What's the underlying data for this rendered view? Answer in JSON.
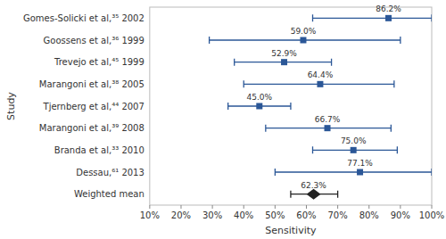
{
  "chart_data": {
    "type": "forest",
    "orientation": "horizontal",
    "xlabel": "Sensitivity",
    "ylabel": "Study",
    "categories": [
      "Gomes-Solicki et al,³⁵ 2002",
      "Goossens et al,³⁶ 1999",
      "Trevejo et al,⁴⁵ 1999",
      "Marangoni et al,³⁸ 2005",
      "Tjernberg et al,⁴⁴ 2007",
      "Marangoni et al,³⁹ 2008",
      "Branda et al,³³ 2010",
      "Dessau,⁶¹ 2013",
      "Weighted mean"
    ],
    "series": [
      {
        "marker": "square",
        "color": "#2b5797",
        "values": [
          86.2,
          59.0,
          52.9,
          64.4,
          45.0,
          66.7,
          75.0,
          77.1,
          null
        ],
        "ci_low": [
          62.0,
          29.0,
          37.0,
          40.0,
          35.0,
          47.0,
          62.0,
          50.0,
          null
        ],
        "ci_high": [
          100.0,
          90.0,
          68.0,
          88.0,
          55.0,
          87.0,
          89.0,
          100.0,
          null
        ],
        "value_labels": [
          "86.2%",
          "59.0%",
          "52.9%",
          "64.4%",
          "45.0%",
          "66.7%",
          "75.0%",
          "77.1%",
          null
        ]
      },
      {
        "marker": "diamond",
        "color": "#222222",
        "values": [
          null,
          null,
          null,
          null,
          null,
          null,
          null,
          null,
          62.3
        ],
        "ci_low": [
          null,
          null,
          null,
          null,
          null,
          null,
          null,
          null,
          55.0
        ],
        "ci_high": [
          null,
          null,
          null,
          null,
          null,
          null,
          null,
          null,
          70.0
        ],
        "value_labels": [
          null,
          null,
          null,
          null,
          null,
          null,
          null,
          null,
          "62.3%"
        ]
      }
    ],
    "data_labels": true,
    "grid": false,
    "xlim": [
      10,
      100
    ],
    "xticks": [
      {
        "value": 10,
        "label": "10%"
      },
      {
        "value": 20,
        "label": "20%"
      },
      {
        "value": 30,
        "label": "30%"
      },
      {
        "value": 40,
        "label": "40%"
      },
      {
        "value": 50,
        "label": "50%"
      },
      {
        "value": 60,
        "label": "60%"
      },
      {
        "value": 70,
        "label": "70%"
      },
      {
        "value": 80,
        "label": "80%"
      },
      {
        "value": 90,
        "label": "90%"
      },
      {
        "value": 100,
        "label": "100%"
      }
    ]
  }
}
